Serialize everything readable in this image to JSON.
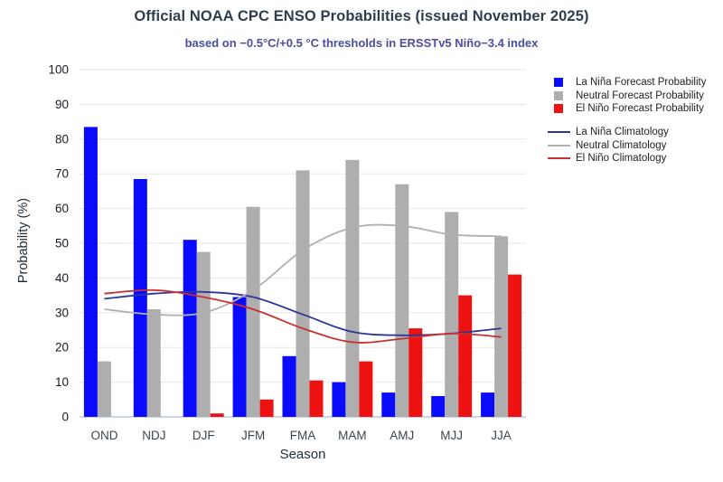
{
  "chart_data": {
    "type": "bar",
    "title": "Official NOAA CPC ENSO Probabilities (issued November 2025)",
    "subtitle": "based on −0.5°C/+0.5 °C thresholds in ERSSTv5 Niño−3.4 index",
    "xlabel": "Season",
    "ylabel": "Probability (%)",
    "ylim": [
      0,
      100
    ],
    "ytick_step": 10,
    "grid": true,
    "legend_position": "right",
    "categories": [
      "OND",
      "NDJ",
      "DJF",
      "JFM",
      "FMA",
      "MAM",
      "AMJ",
      "MJJ",
      "JJA"
    ],
    "series": [
      {
        "name": "La Niña Forecast Probability",
        "kind": "bar",
        "color": "#0a0aff",
        "values": [
          83.5,
          68.5,
          51,
          34.5,
          17.5,
          10,
          7,
          6,
          7
        ]
      },
      {
        "name": "Neutral Forecast Probability",
        "kind": "bar",
        "color": "#aeaeae",
        "values": [
          16,
          31,
          47.5,
          60.5,
          71,
          74,
          67,
          59,
          52
        ]
      },
      {
        "name": "El Niño Forecast Probability",
        "kind": "bar",
        "color": "#ee1111",
        "values": [
          0,
          0,
          1,
          5,
          10.5,
          16,
          25.5,
          35,
          41
        ]
      },
      {
        "name": "La Niña Climatology",
        "kind": "line",
        "color": "#2b3699",
        "values": [
          34,
          35.5,
          36,
          34.5,
          29.5,
          24.5,
          23.5,
          24,
          25.5
        ]
      },
      {
        "name": "Neutral Climatology",
        "kind": "line",
        "color": "#b0b0b0",
        "values": [
          31,
          29.5,
          30,
          36.5,
          48,
          54.5,
          55,
          52.5,
          52
        ]
      },
      {
        "name": "El Niño Climatology",
        "kind": "line",
        "color": "#c93030",
        "values": [
          35.5,
          36.5,
          34.5,
          31,
          25.5,
          21.5,
          22.5,
          24,
          23
        ]
      }
    ]
  },
  "style_colors": {
    "gridline": "#e7e7e7",
    "axis_line": "#bcc9e2",
    "title_text": "#2f3e4e",
    "subtitle_text": "#4c4da3"
  }
}
